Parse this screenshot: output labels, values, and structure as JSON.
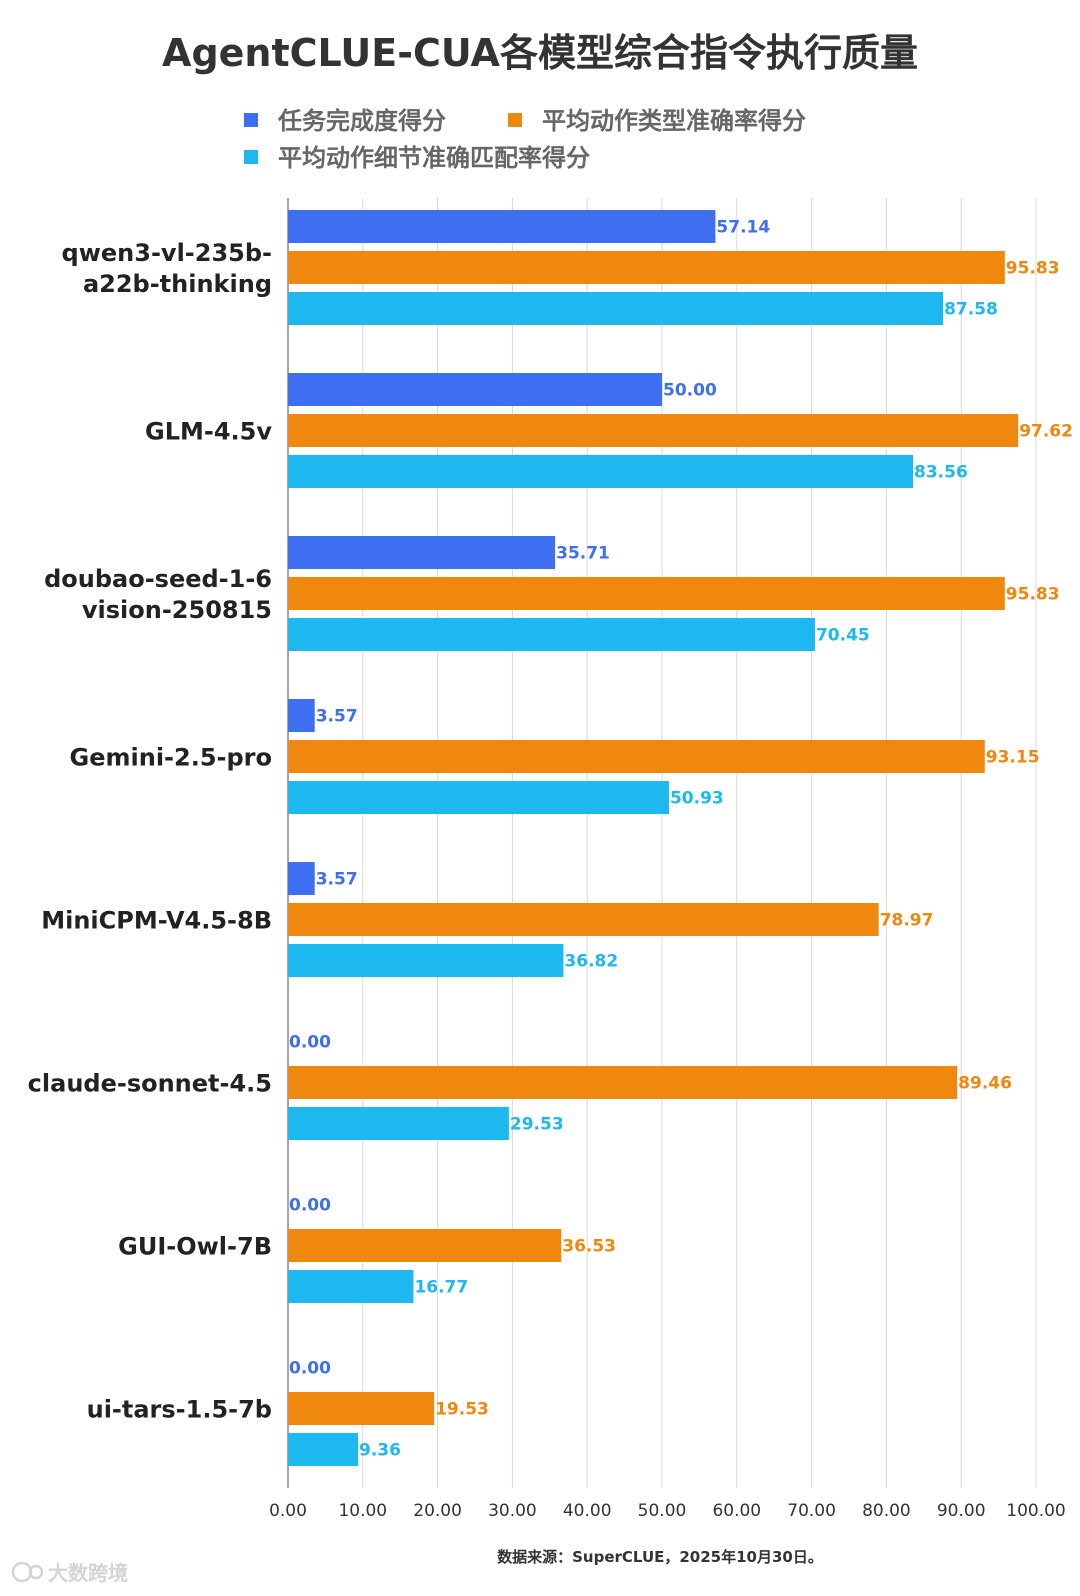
{
  "chart_data": {
    "type": "bar",
    "orientation": "horizontal",
    "title": "AgentCLUE-CUA各模型综合指令执行质量",
    "categories": [
      [
        "qwen3-vl-235b-",
        "a22b-thinking"
      ],
      [
        "GLM-4.5v"
      ],
      [
        "doubao-seed-1-6",
        "vision-250815"
      ],
      [
        "Gemini-2.5-pro"
      ],
      [
        "MiniCPM-V4.5-8B"
      ],
      [
        "claude-sonnet-4.5"
      ],
      [
        "GUI-Owl-7B"
      ],
      [
        "ui-tars-1.5-7b"
      ]
    ],
    "series": [
      {
        "name": "任务完成度得分",
        "color": "#3d6ff0",
        "values": [
          57.14,
          50.0,
          35.71,
          3.57,
          3.57,
          0.0,
          0.0,
          0.0
        ]
      },
      {
        "name": "平均动作类型准确率得分",
        "color": "#f0870f",
        "values": [
          95.83,
          97.62,
          95.83,
          93.15,
          78.97,
          89.46,
          36.53,
          19.53
        ]
      },
      {
        "name": "平均动作细节准确匹配率得分",
        "color": "#1db8ef",
        "values": [
          87.58,
          83.56,
          70.45,
          50.93,
          36.82,
          29.53,
          16.77,
          9.36
        ]
      }
    ],
    "x_ticks": [
      "0.00",
      "10.00",
      "20.00",
      "30.00",
      "40.00",
      "50.00",
      "60.00",
      "70.00",
      "80.00",
      "90.00",
      "100.00"
    ],
    "xlim": [
      0,
      100
    ],
    "grid": "vertical",
    "legend_position": "top",
    "xlabel": "",
    "ylabel": ""
  },
  "source_note": "数据来源：SuperCLUE，2025年10月30日。",
  "watermark": "大数跨境"
}
